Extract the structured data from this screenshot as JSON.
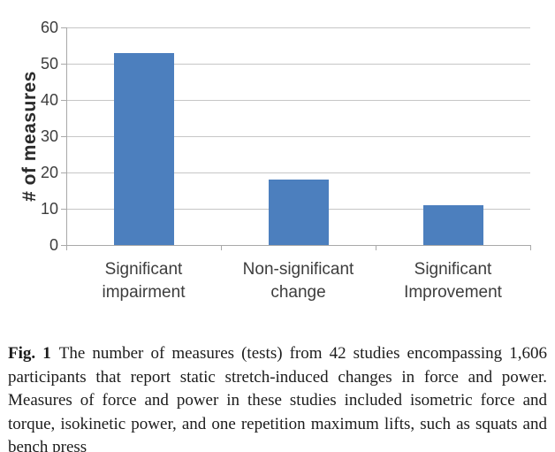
{
  "chart_data": {
    "type": "bar",
    "categories": [
      "Significant\nimpairment",
      "Non-significant\nchange",
      "Significant\nImprovement"
    ],
    "values": [
      53,
      18,
      11
    ],
    "title": "",
    "xlabel": "",
    "ylabel": "# of measures",
    "ylim": [
      0,
      60
    ],
    "yticks": [
      0,
      10,
      20,
      30,
      40,
      50,
      60
    ],
    "grid": "horizontal",
    "legend": "none",
    "colors": {
      "bar": "#4c7fbe",
      "gridline": "#c6c6c6",
      "axis": "#a9a9a9",
      "label_text": "#3d3d3d"
    }
  },
  "caption": {
    "label": "Fig. 1",
    "text": "The number of measures (tests) from 42 studies encompassing 1,606 participants that report static stretch-induced changes in force and power. Measures of force and power in these studies included isometric force and torque, isokinetic power, and one repetition maximum lifts, such as squats and bench press"
  }
}
